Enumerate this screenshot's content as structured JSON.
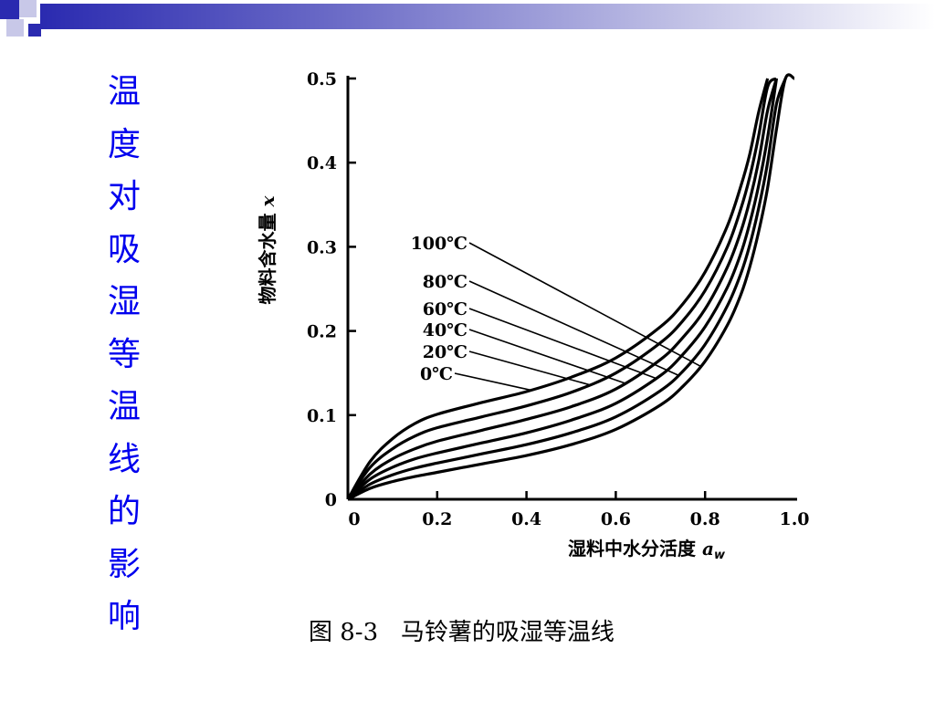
{
  "slide": {
    "title_chars": [
      "温",
      "度",
      "对",
      "吸",
      "湿",
      "等",
      "温",
      "线",
      "的",
      "影",
      "响"
    ],
    "title_color": "#0000ee",
    "accent_color": "#2a2ab0"
  },
  "caption": "图 8-3   马铃薯的吸湿等温线",
  "chart_data": {
    "type": "line",
    "xlabel": "湿料中水分活度",
    "xlabel_symbol": "a",
    "xlabel_subscript": "w",
    "ylabel": "物料含水量",
    "ylabel_symbol": "x",
    "xlim": [
      0,
      1.0
    ],
    "ylim": [
      0,
      0.5
    ],
    "x_ticks": [
      "0",
      "0.2",
      "0.4",
      "0.6",
      "0.8",
      "1.0"
    ],
    "y_ticks": [
      "0",
      "0.1",
      "0.2",
      "0.3",
      "0.4",
      "0.5"
    ],
    "grid": false,
    "x": [
      0,
      0.05,
      0.1,
      0.15,
      0.2,
      0.3,
      0.4,
      0.5,
      0.6,
      0.7,
      0.75,
      0.8,
      0.85,
      0.88,
      0.9,
      0.92,
      0.94,
      0.96,
      0.98,
      1.0
    ],
    "series": [
      {
        "name": "0℃",
        "values": [
          0,
          0.045,
          0.072,
          0.09,
          0.101,
          0.115,
          0.128,
          0.145,
          0.168,
          0.205,
          0.232,
          0.27,
          0.325,
          0.372,
          0.41,
          0.46,
          0.5,
          null,
          null,
          null
        ]
      },
      {
        "name": "20℃",
        "values": [
          0,
          0.038,
          0.06,
          0.075,
          0.085,
          0.098,
          0.111,
          0.127,
          0.15,
          0.186,
          0.212,
          0.248,
          0.3,
          0.345,
          0.383,
          0.432,
          0.49,
          0.5,
          null,
          null
        ]
      },
      {
        "name": "40℃",
        "values": [
          0,
          0.03,
          0.048,
          0.06,
          0.069,
          0.082,
          0.095,
          0.11,
          0.131,
          0.166,
          0.192,
          0.226,
          0.276,
          0.318,
          0.355,
          0.402,
          0.462,
          0.5,
          null,
          null
        ]
      },
      {
        "name": "60℃",
        "values": [
          0,
          0.024,
          0.038,
          0.048,
          0.055,
          0.067,
          0.079,
          0.094,
          0.114,
          0.147,
          0.172,
          0.205,
          0.252,
          0.292,
          0.328,
          0.373,
          0.43,
          0.5,
          null,
          null
        ]
      },
      {
        "name": "80℃",
        "values": [
          0,
          0.018,
          0.029,
          0.037,
          0.043,
          0.054,
          0.065,
          0.079,
          0.098,
          0.129,
          0.152,
          0.184,
          0.23,
          0.268,
          0.302,
          0.346,
          0.4,
          0.47,
          0.5,
          null
        ]
      },
      {
        "name": "100℃",
        "values": [
          0,
          0.013,
          0.021,
          0.027,
          0.032,
          0.042,
          0.052,
          0.065,
          0.083,
          0.112,
          0.134,
          0.164,
          0.207,
          0.243,
          0.276,
          0.318,
          0.37,
          0.44,
          0.5,
          0.5
        ]
      }
    ],
    "annotations": [
      {
        "label": "100℃",
        "series": "100℃",
        "x": 0.79
      },
      {
        "label": "80℃",
        "series": "80℃",
        "x": 0.74
      },
      {
        "label": "60℃",
        "series": "60℃",
        "x": 0.69
      },
      {
        "label": "40℃",
        "series": "40℃",
        "x": 0.62
      },
      {
        "label": "20℃",
        "series": "20℃",
        "x": 0.54
      },
      {
        "label": "0℃",
        "series": "0℃",
        "x": 0.41
      }
    ]
  }
}
